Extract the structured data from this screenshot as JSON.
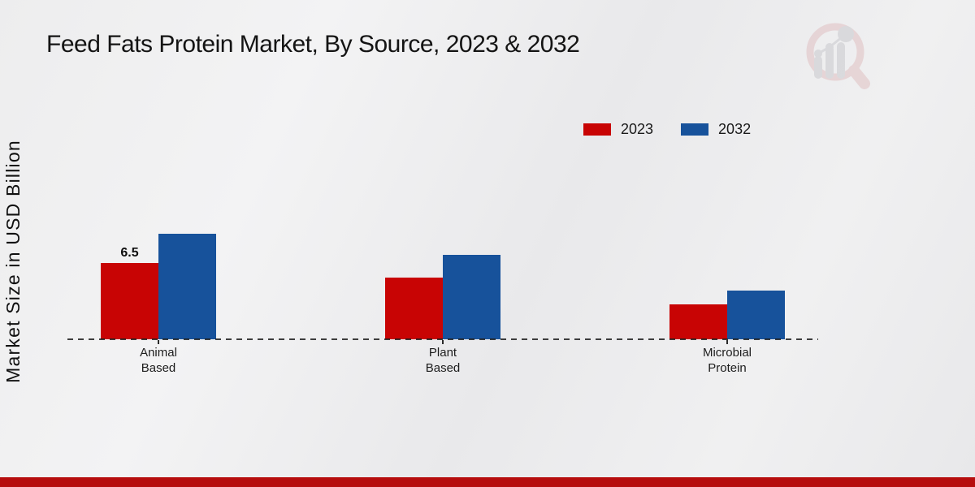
{
  "chart_data": {
    "type": "bar",
    "title": "Feed Fats Protein Market, By Source, 2023 & 2032",
    "xlabel": "",
    "ylabel": "Market Size in USD Billion",
    "categories": [
      "Animal Based",
      "Plant Based",
      "Microbial Protein"
    ],
    "series": [
      {
        "name": "2023",
        "color": "#c80404",
        "values": [
          6.5,
          5.3,
          3.0
        ]
      },
      {
        "name": "2032",
        "color": "#17529b",
        "values": [
          9.0,
          7.2,
          4.2
        ]
      }
    ],
    "bar_labels": [
      {
        "series_index": 0,
        "category_index": 0,
        "text": "6.5"
      }
    ],
    "ylim": [
      0,
      10
    ],
    "grid": false,
    "legend_position": "top-right",
    "baseline_style": "dashed"
  },
  "branding": {
    "logo_name": "magnifier-bar-chart-logo"
  },
  "colors": {
    "series_2023": "#c80404",
    "series_2032": "#17529b",
    "footer_strip": "#b60d0d",
    "background": "#ededee",
    "text": "#141414"
  }
}
